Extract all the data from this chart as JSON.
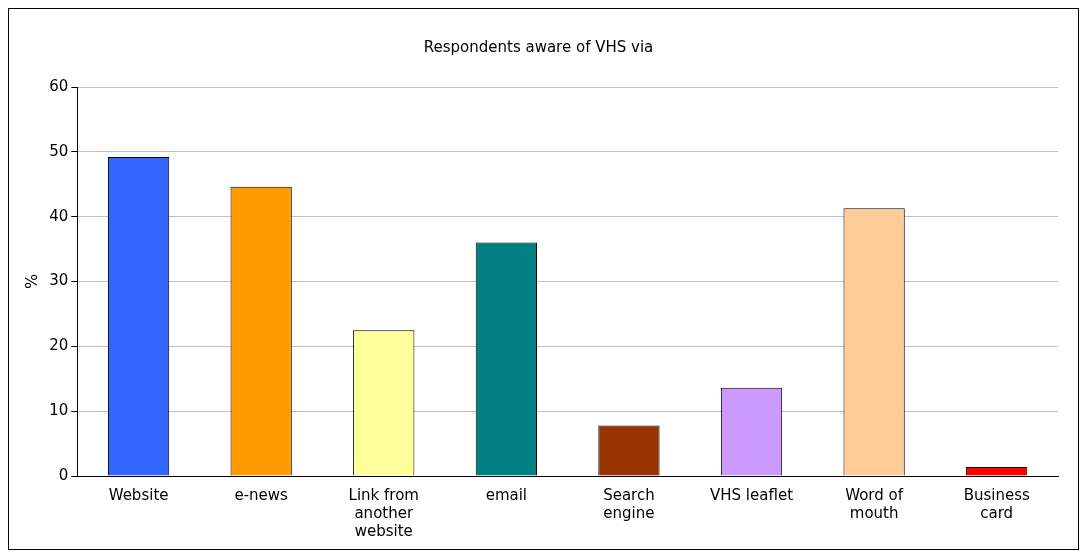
{
  "chart_data": {
    "type": "bar",
    "title": "Respondents aware of VHS via",
    "ylabel": "%",
    "categories": [
      "Website",
      "e-news",
      "Link from another website",
      "email",
      "Search engine",
      "VHS leaflet",
      "Word of mouth",
      "Business card"
    ],
    "values": [
      49.2,
      44.6,
      22.5,
      36,
      7.8,
      13.6,
      41.3,
      1.4
    ],
    "colors": [
      "#3366ff",
      "#ff9900",
      "#ffff99",
      "#008080",
      "#993300",
      "#cc99ff",
      "#ffcc99",
      "#ff0000"
    ],
    "ylim": [
      0,
      60
    ],
    "yticks": [
      0,
      10,
      20,
      30,
      40,
      50,
      60
    ],
    "grid": "y",
    "legend": false
  }
}
